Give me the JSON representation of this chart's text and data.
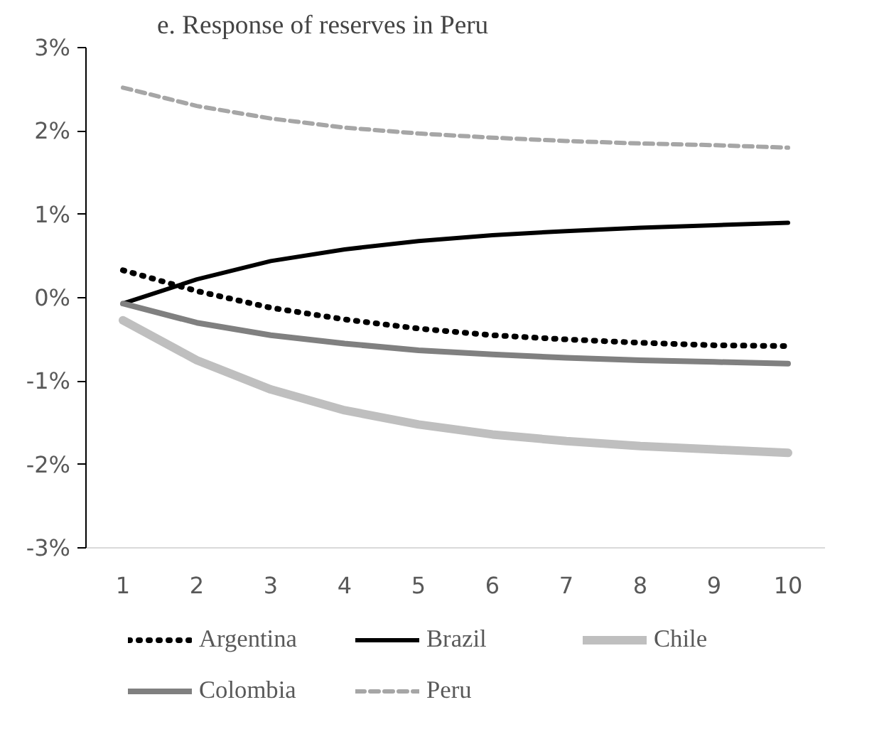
{
  "chart_data": {
    "type": "line",
    "title": "e. Response of reserves in Peru",
    "categories": [
      "1",
      "2",
      "3",
      "4",
      "5",
      "6",
      "7",
      "8",
      "9",
      "10"
    ],
    "series": [
      {
        "name": "Argentina",
        "color": "#000000",
        "line_style": "dotted",
        "values": [
          0.33,
          0.08,
          -0.12,
          -0.26,
          -0.37,
          -0.45,
          -0.5,
          -0.54,
          -0.57,
          -0.58
        ]
      },
      {
        "name": "Brazil",
        "color": "#000000",
        "line_style": "solid",
        "values": [
          -0.07,
          0.22,
          0.44,
          0.58,
          0.68,
          0.75,
          0.8,
          0.84,
          0.87,
          0.9
        ]
      },
      {
        "name": "Chile",
        "color": "#bfbfbf",
        "line_style": "solid",
        "values": [
          -0.27,
          -0.75,
          -1.1,
          -1.35,
          -1.52,
          -1.64,
          -1.72,
          -1.78,
          -1.82,
          -1.86
        ]
      },
      {
        "name": "Colombia",
        "color": "#808080",
        "line_style": "solid",
        "values": [
          -0.07,
          -0.3,
          -0.45,
          -0.55,
          -0.63,
          -0.68,
          -0.72,
          -0.75,
          -0.77,
          -0.79
        ]
      },
      {
        "name": "Peru",
        "color": "#a6a6a6",
        "line_style": "dashed",
        "values": [
          2.52,
          2.3,
          2.15,
          2.04,
          1.97,
          1.92,
          1.88,
          1.85,
          1.83,
          1.8
        ]
      }
    ],
    "ylim": [
      -3,
      3
    ],
    "yticks": [
      {
        "value": -3,
        "label": "-3%"
      },
      {
        "value": -2,
        "label": "-2%"
      },
      {
        "value": -1,
        "label": "-1%"
      },
      {
        "value": 0,
        "label": "0%"
      },
      {
        "value": 1,
        "label": "1%"
      },
      {
        "value": 2,
        "label": "2%"
      },
      {
        "value": 3,
        "label": "3%"
      }
    ],
    "grid": false,
    "legend": "bottom",
    "marker": "none"
  }
}
